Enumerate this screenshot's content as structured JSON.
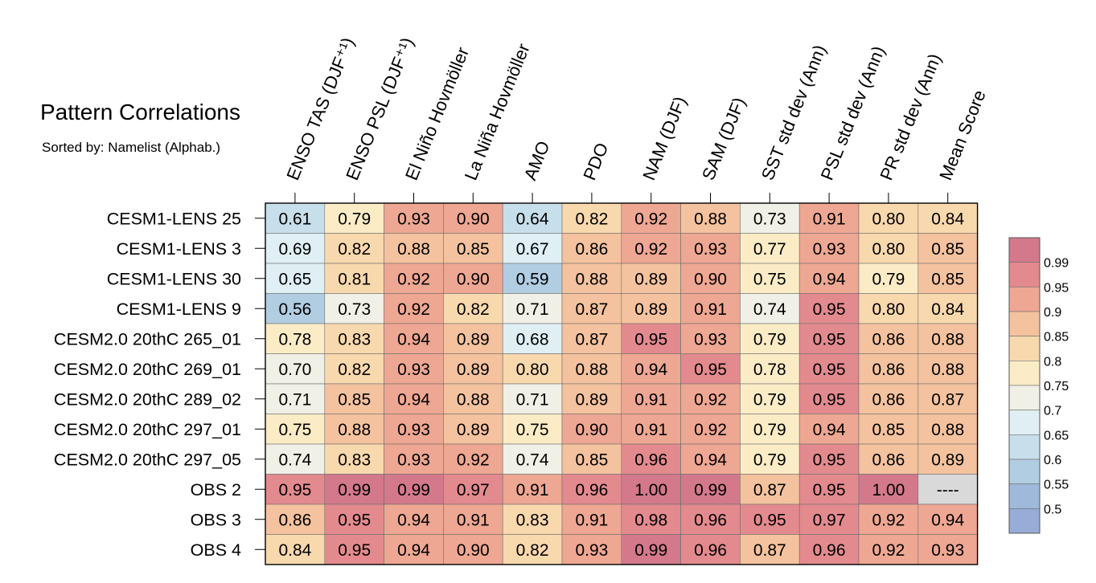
{
  "header": {
    "title": "Pattern Correlations",
    "subtitle": "Sorted by: Namelist (Alphab.)"
  },
  "chart_data": {
    "type": "heatmap",
    "columns": [
      "ENSO TAS (DJF⁺¹)",
      "ENSO PSL (DJF⁺¹)",
      "El Niño Hovmöller",
      "La Niña Hovmöller",
      "AMO",
      "PDO",
      "NAM (DJF)",
      "SAM (DJF)",
      "SST std dev (Ann)",
      "PSL std dev (Ann)",
      "PR std dev (Ann)",
      "Mean Score"
    ],
    "rows": [
      "CESM1-LENS 25",
      "CESM1-LENS 3",
      "CESM1-LENS 30",
      "CESM1-LENS 9",
      "CESM2.0 20thC 265_01",
      "CESM2.0 20thC 269_01",
      "CESM2.0 20thC 289_02",
      "CESM2.0 20thC 297_01",
      "CESM2.0 20thC 297_05",
      "OBS 2",
      "OBS 3",
      "OBS 4"
    ],
    "values": [
      [
        "0.61",
        "0.79",
        "0.93",
        "0.90",
        "0.64",
        "0.82",
        "0.92",
        "0.88",
        "0.73",
        "0.91",
        "0.80",
        "0.84"
      ],
      [
        "0.69",
        "0.82",
        "0.88",
        "0.85",
        "0.67",
        "0.86",
        "0.92",
        "0.93",
        "0.77",
        "0.93",
        "0.80",
        "0.85"
      ],
      [
        "0.65",
        "0.81",
        "0.92",
        "0.90",
        "0.59",
        "0.88",
        "0.89",
        "0.90",
        "0.75",
        "0.94",
        "0.79",
        "0.85"
      ],
      [
        "0.56",
        "0.73",
        "0.92",
        "0.82",
        "0.71",
        "0.87",
        "0.89",
        "0.91",
        "0.74",
        "0.95",
        "0.80",
        "0.84"
      ],
      [
        "0.78",
        "0.83",
        "0.94",
        "0.89",
        "0.68",
        "0.87",
        "0.95",
        "0.93",
        "0.79",
        "0.95",
        "0.86",
        "0.88"
      ],
      [
        "0.70",
        "0.82",
        "0.93",
        "0.89",
        "0.80",
        "0.88",
        "0.94",
        "0.95",
        "0.78",
        "0.95",
        "0.86",
        "0.88"
      ],
      [
        "0.71",
        "0.85",
        "0.94",
        "0.88",
        "0.71",
        "0.89",
        "0.91",
        "0.92",
        "0.79",
        "0.95",
        "0.86",
        "0.87"
      ],
      [
        "0.75",
        "0.88",
        "0.93",
        "0.89",
        "0.75",
        "0.90",
        "0.91",
        "0.92",
        "0.79",
        "0.94",
        "0.85",
        "0.88"
      ],
      [
        "0.74",
        "0.83",
        "0.93",
        "0.92",
        "0.74",
        "0.85",
        "0.96",
        "0.94",
        "0.79",
        "0.95",
        "0.86",
        "0.89"
      ],
      [
        "0.95",
        "0.99",
        "0.99",
        "0.97",
        "0.91",
        "0.96",
        "1.00",
        "0.99",
        "0.87",
        "0.95",
        "1.00",
        "----"
      ],
      [
        "0.86",
        "0.95",
        "0.94",
        "0.91",
        "0.83",
        "0.91",
        "0.98",
        "0.96",
        "0.95",
        "0.97",
        "0.92",
        "0.94"
      ],
      [
        "0.84",
        "0.95",
        "0.94",
        "0.90",
        "0.82",
        "0.93",
        "0.99",
        "0.96",
        "0.87",
        "0.96",
        "0.92",
        "0.93"
      ]
    ],
    "colorbar": {
      "labels": [
        "0.99",
        "0.95",
        "0.9",
        "0.85",
        "0.8",
        "0.75",
        "0.7",
        "0.65",
        "0.6",
        "0.55",
        "0.5"
      ],
      "colors_top_to_bottom": [
        "#d3798b",
        "#e38a8e",
        "#eea792",
        "#f4c29e",
        "#f8d8ad",
        "#fbecc6",
        "#f0f0e6",
        "#dfeff4",
        "#c7dfea",
        "#b1cde2",
        "#9eb9db",
        "#97acd6"
      ],
      "missing_color": "#d9d9d9"
    }
  }
}
